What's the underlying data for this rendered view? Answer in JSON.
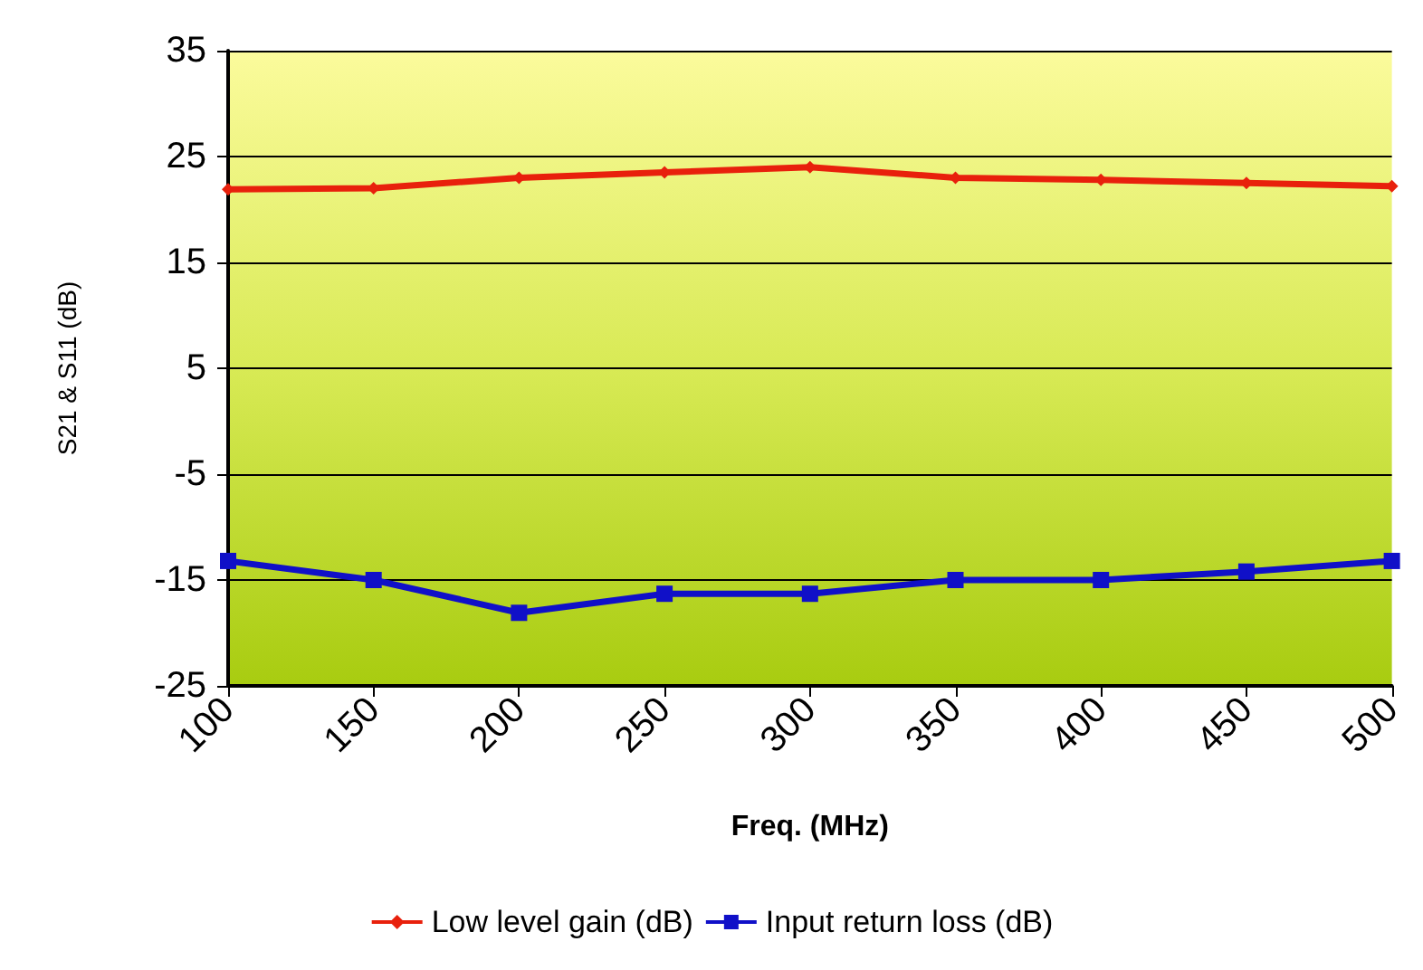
{
  "chart_data": {
    "type": "line",
    "xlabel": "Freq. (MHz)",
    "ylabel": "S21 & S11 (dB)",
    "categories": [
      "100",
      "150",
      "200",
      "250",
      "300",
      "350",
      "400",
      "450",
      "500"
    ],
    "series": [
      {
        "name": "Low level gain (dB)",
        "color": "#e8200c",
        "marker": "diamond",
        "values": [
          21.9,
          22,
          23,
          23.5,
          24,
          23,
          22.8,
          22.5,
          22.2
        ]
      },
      {
        "name": "Input return loss (dB)",
        "color": "#1010c8",
        "marker": "square",
        "values": [
          -13.2,
          -15,
          -18.1,
          -16.3,
          -16.3,
          -15,
          -15,
          -14.2,
          -13.2
        ]
      }
    ],
    "ylim": [
      -25,
      35
    ],
    "yticks": [
      -25,
      -15,
      -5,
      5,
      15,
      25,
      35
    ],
    "grid": "y",
    "legend": "bottom"
  }
}
